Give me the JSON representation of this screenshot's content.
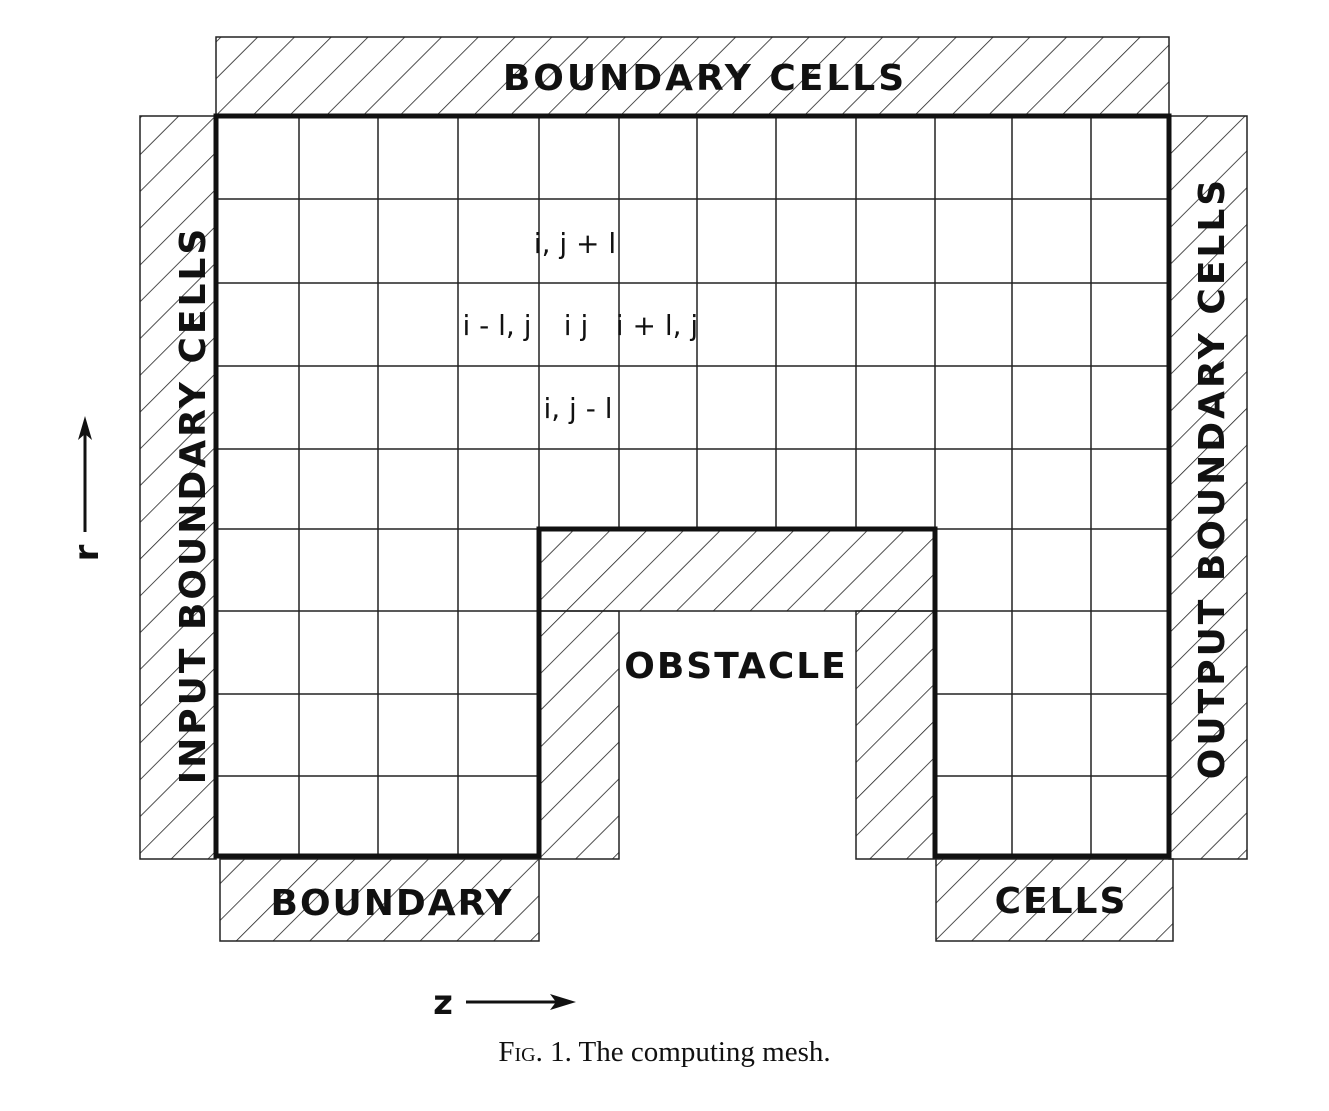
{
  "labels": {
    "top": "BOUNDARY CELLS",
    "left": "INPUT BOUNDARY CELLS",
    "right": "OUTPUT BOUNDARY CELLS",
    "bottom_left": "BOUNDARY",
    "bottom_right": "CELLS",
    "obstacle": "OBSTACLE"
  },
  "cells": {
    "up": "i, j + l",
    "left": "i - l, j",
    "center": "i j",
    "right": "i + l, j",
    "down": "i, j - l"
  },
  "axes": {
    "r": "r",
    "z": "z"
  },
  "caption": {
    "prefix": "Fig.",
    "text": "1. The computing mesh."
  }
}
